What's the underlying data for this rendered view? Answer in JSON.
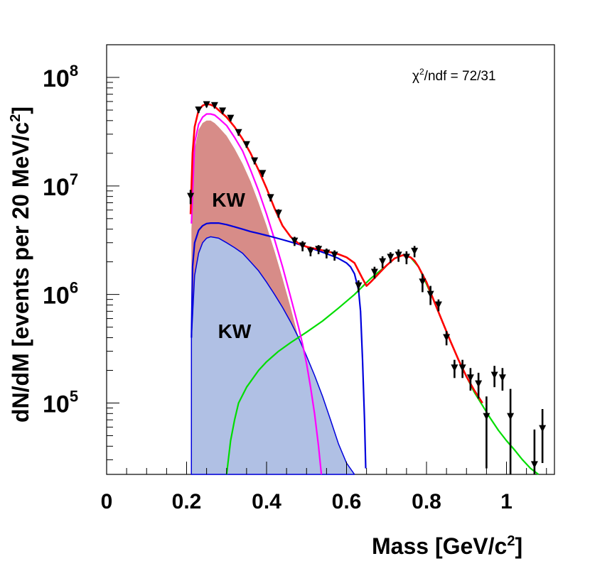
{
  "chart_data": {
    "type": "scatter",
    "title": "",
    "xlabel": "Mass  [GeV/c",
    "xlabel_sup": "2",
    "xlabel_end": "]",
    "ylabel": "dN/dM  [events per 20 MeV/c",
    "ylabel_sup": "2",
    "ylabel_end": "]",
    "xlim": [
      0,
      1.12
    ],
    "ylim": [
      22000,
      200000000
    ],
    "yscale": "log",
    "x_ticks": [
      {
        "value": 0,
        "label": "0"
      },
      {
        "value": 0.2,
        "label": "0.2"
      },
      {
        "value": 0.4,
        "label": "0.4"
      },
      {
        "value": 0.6,
        "label": "0.6"
      },
      {
        "value": 0.8,
        "label": "0.8"
      },
      {
        "value": 1.0,
        "label": "1"
      }
    ],
    "y_ticks": [
      {
        "value": 100000,
        "base": "10",
        "exp": "5"
      },
      {
        "value": 1000000,
        "base": "10",
        "exp": "6"
      },
      {
        "value": 10000000,
        "base": "10",
        "exp": "7"
      },
      {
        "value": 100000000,
        "base": "10",
        "exp": "8"
      }
    ],
    "annotation": {
      "chi": "χ",
      "sup": "2",
      "rest": "/ndf = 72/31"
    },
    "region_labels": [
      {
        "text": "KW",
        "x": 0.305,
        "y": 7500000
      },
      {
        "text": "KW",
        "x": 0.32,
        "y": 460000
      }
    ],
    "series": [
      {
        "name": "data",
        "kind": "points",
        "color": "#000000",
        "points": [
          {
            "x": 0.21,
            "y": 8000000,
            "err_up": 1200000,
            "err_down": 1200000
          },
          {
            "x": 0.23,
            "y": 50000000,
            "err_up": 3000000,
            "err_down": 3000000
          },
          {
            "x": 0.25,
            "y": 56000000,
            "err_up": 3000000,
            "err_down": 3000000
          },
          {
            "x": 0.27,
            "y": 55000000,
            "err_up": 3000000,
            "err_down": 3000000
          },
          {
            "x": 0.29,
            "y": 49000000,
            "err_up": 3000000,
            "err_down": 3000000
          },
          {
            "x": 0.31,
            "y": 42000000,
            "err_up": 2500000,
            "err_down": 2500000
          },
          {
            "x": 0.33,
            "y": 31000000,
            "err_up": 2000000,
            "err_down": 2000000
          },
          {
            "x": 0.35,
            "y": 24000000,
            "err_up": 1500000,
            "err_down": 1500000
          },
          {
            "x": 0.37,
            "y": 17000000,
            "err_up": 1200000,
            "err_down": 1200000
          },
          {
            "x": 0.39,
            "y": 13000000,
            "err_up": 900000,
            "err_down": 900000
          },
          {
            "x": 0.41,
            "y": 7800000,
            "err_up": 600000,
            "err_down": 600000
          },
          {
            "x": 0.43,
            "y": 5600000,
            "err_up": 500000,
            "err_down": 500000
          },
          {
            "x": 0.47,
            "y": 3100000,
            "err_up": 300000,
            "err_down": 300000
          },
          {
            "x": 0.49,
            "y": 2800000,
            "err_up": 300000,
            "err_down": 300000
          },
          {
            "x": 0.51,
            "y": 2500000,
            "err_up": 250000,
            "err_down": 250000
          },
          {
            "x": 0.53,
            "y": 2600000,
            "err_up": 250000,
            "err_down": 250000
          },
          {
            "x": 0.55,
            "y": 2400000,
            "err_up": 250000,
            "err_down": 250000
          },
          {
            "x": 0.57,
            "y": 2300000,
            "err_up": 250000,
            "err_down": 250000
          },
          {
            "x": 0.63,
            "y": 1200000,
            "err_up": 150000,
            "err_down": 150000
          },
          {
            "x": 0.67,
            "y": 1600000,
            "err_up": 200000,
            "err_down": 200000
          },
          {
            "x": 0.69,
            "y": 2000000,
            "err_up": 250000,
            "err_down": 250000
          },
          {
            "x": 0.71,
            "y": 2200000,
            "err_up": 250000,
            "err_down": 250000
          },
          {
            "x": 0.73,
            "y": 2300000,
            "err_up": 300000,
            "err_down": 300000
          },
          {
            "x": 0.75,
            "y": 2200000,
            "err_up": 300000,
            "err_down": 300000
          },
          {
            "x": 0.77,
            "y": 2500000,
            "err_up": 300000,
            "err_down": 300000
          },
          {
            "x": 0.79,
            "y": 1300000,
            "err_up": 250000,
            "err_down": 250000
          },
          {
            "x": 0.81,
            "y": 1000000,
            "err_up": 200000,
            "err_down": 200000
          },
          {
            "x": 0.83,
            "y": 800000,
            "err_up": 100000,
            "err_down": 100000
          },
          {
            "x": 0.85,
            "y": 400000,
            "err_up": 60000,
            "err_down": 60000
          },
          {
            "x": 0.87,
            "y": 210000,
            "err_up": 40000,
            "err_down": 40000
          },
          {
            "x": 0.89,
            "y": 210000,
            "err_up": 40000,
            "err_down": 40000
          },
          {
            "x": 0.91,
            "y": 170000,
            "err_up": 40000,
            "err_down": 40000
          },
          {
            "x": 0.93,
            "y": 150000,
            "err_up": 40000,
            "err_down": 40000
          },
          {
            "x": 0.95,
            "y": 75000,
            "err_up": 40000,
            "err_down": 50000
          },
          {
            "x": 0.97,
            "y": 180000,
            "err_up": 40000,
            "err_down": 40000
          },
          {
            "x": 0.99,
            "y": 170000,
            "err_up": 40000,
            "err_down": 40000
          },
          {
            "x": 1.01,
            "y": 75000,
            "err_up": 60000,
            "err_down": 53000
          },
          {
            "x": 1.07,
            "y": 27000,
            "err_up": 30000,
            "err_down": 5000
          },
          {
            "x": 1.09,
            "y": 58000,
            "err_up": 30000,
            "err_down": 30000
          }
        ]
      },
      {
        "name": "total fit",
        "kind": "line",
        "color": "#ff0000",
        "x": [
          0.21,
          0.215,
          0.22,
          0.23,
          0.24,
          0.25,
          0.26,
          0.27,
          0.28,
          0.3,
          0.32,
          0.34,
          0.36,
          0.38,
          0.4,
          0.42,
          0.44,
          0.46,
          0.48,
          0.5,
          0.52,
          0.54,
          0.56,
          0.58,
          0.6,
          0.62,
          0.64,
          0.65,
          0.66,
          0.68,
          0.7,
          0.72,
          0.74,
          0.76,
          0.77,
          0.78,
          0.8,
          0.82,
          0.84,
          0.86,
          0.88,
          0.9,
          0.92,
          0.94
        ],
        "y": [
          5500000,
          20000000,
          35000000,
          50000000,
          55000000,
          57000000,
          56000000,
          54000000,
          50000000,
          43000000,
          35000000,
          27000000,
          20000000,
          14000000,
          9500000,
          6200000,
          4300000,
          3400000,
          2950000,
          2750000,
          2650000,
          2550000,
          2450000,
          2350000,
          2200000,
          1950000,
          1400000,
          1200000,
          1300000,
          1550000,
          1850000,
          2150000,
          2300000,
          2200000,
          2050000,
          1800000,
          1300000,
          850000,
          560000,
          370000,
          250000,
          175000,
          130000,
          100000
        ]
      },
      {
        "name": "KW broad (magenta)",
        "kind": "line",
        "color": "#ff00ff",
        "x": [
          0.212,
          0.22,
          0.23,
          0.24,
          0.25,
          0.26,
          0.27,
          0.28,
          0.3,
          0.32,
          0.34,
          0.36,
          0.38,
          0.4,
          0.42,
          0.44,
          0.46,
          0.48,
          0.49,
          0.5,
          0.51,
          0.52,
          0.53,
          0.537
        ],
        "y": [
          4500000,
          25000000,
          37000000,
          43000000,
          46000000,
          46000000,
          45000000,
          42000000,
          36000000,
          28000000,
          21000000,
          14000000,
          9000000,
          5500000,
          3200000,
          1800000,
          950000,
          500000,
          350000,
          230000,
          140000,
          80000,
          40000,
          22000
        ]
      },
      {
        "name": "KW (red fill)",
        "kind": "area",
        "color": "#d78c88",
        "x": [
          0.212,
          0.22,
          0.23,
          0.24,
          0.25,
          0.26,
          0.27,
          0.28,
          0.3,
          0.32,
          0.34,
          0.36,
          0.38,
          0.4,
          0.42,
          0.44,
          0.46,
          0.48,
          0.5,
          0.51,
          0.52,
          0.53,
          0.537
        ],
        "y": [
          4000000,
          22000000,
          33000000,
          38000000,
          40000000,
          40000000,
          38000000,
          35000000,
          29000000,
          22000000,
          16000000,
          11000000,
          7000000,
          4300000,
          2500000,
          1400000,
          760000,
          400000,
          180000,
          110000,
          62000,
          32000,
          22000
        ]
      },
      {
        "name": "KW (blue fill)",
        "kind": "area",
        "color": "#b0c0e4",
        "stroke": "#0000dd",
        "x": [
          0.212,
          0.22,
          0.23,
          0.24,
          0.25,
          0.26,
          0.28,
          0.3,
          0.32,
          0.34,
          0.36,
          0.38,
          0.4,
          0.42,
          0.44,
          0.46,
          0.48,
          0.5,
          0.52,
          0.54,
          0.56,
          0.58,
          0.6,
          0.62
        ],
        "y": [
          400000,
          1500000,
          2400000,
          3000000,
          3300000,
          3400000,
          3300000,
          3000000,
          2700000,
          2400000,
          2000000,
          1650000,
          1300000,
          1000000,
          760000,
          560000,
          400000,
          270000,
          180000,
          115000,
          70000,
          42000,
          28000,
          22000
        ]
      },
      {
        "name": "blue component",
        "kind": "line",
        "color": "#0000dd",
        "x": [
          0.212,
          0.215,
          0.22,
          0.23,
          0.24,
          0.25,
          0.26,
          0.28,
          0.3,
          0.32,
          0.34,
          0.36,
          0.38,
          0.4,
          0.42,
          0.44,
          0.46,
          0.48,
          0.5,
          0.52,
          0.54,
          0.56,
          0.58,
          0.6,
          0.61,
          0.62,
          0.63,
          0.635,
          0.64,
          0.645,
          0.648
        ],
        "y": [
          400000,
          1800000,
          3000000,
          3900000,
          4300000,
          4500000,
          4550000,
          4550000,
          4400000,
          4200000,
          4000000,
          3800000,
          3650000,
          3500000,
          3350000,
          3200000,
          3050000,
          2900000,
          2750000,
          2600000,
          2450000,
          2300000,
          2150000,
          1950000,
          1800000,
          1550000,
          1100000,
          700000,
          250000,
          70000,
          25000
        ]
      },
      {
        "name": "omega (green)",
        "kind": "line",
        "color": "#00dd00",
        "x": [
          0.3,
          0.31,
          0.32,
          0.33,
          0.35,
          0.38,
          0.4,
          0.43,
          0.46,
          0.5,
          0.54,
          0.58,
          0.62,
          0.66,
          0.7,
          0.72,
          0.74,
          0.76,
          0.78,
          0.8,
          0.82,
          0.84,
          0.86,
          0.88,
          0.9,
          0.92,
          0.94,
          0.96,
          0.98,
          1.0,
          1.02,
          1.04,
          1.06,
          1.08
        ],
        "y": [
          22000,
          45000,
          70000,
          100000,
          140000,
          200000,
          240000,
          300000,
          360000,
          450000,
          570000,
          750000,
          1000000,
          1400000,
          1850000,
          2150000,
          2300000,
          2200000,
          1800000,
          1250000,
          850000,
          560000,
          370000,
          250000,
          175000,
          125000,
          95000,
          72000,
          56000,
          45000,
          37000,
          30000,
          25000,
          20500
        ]
      }
    ]
  }
}
